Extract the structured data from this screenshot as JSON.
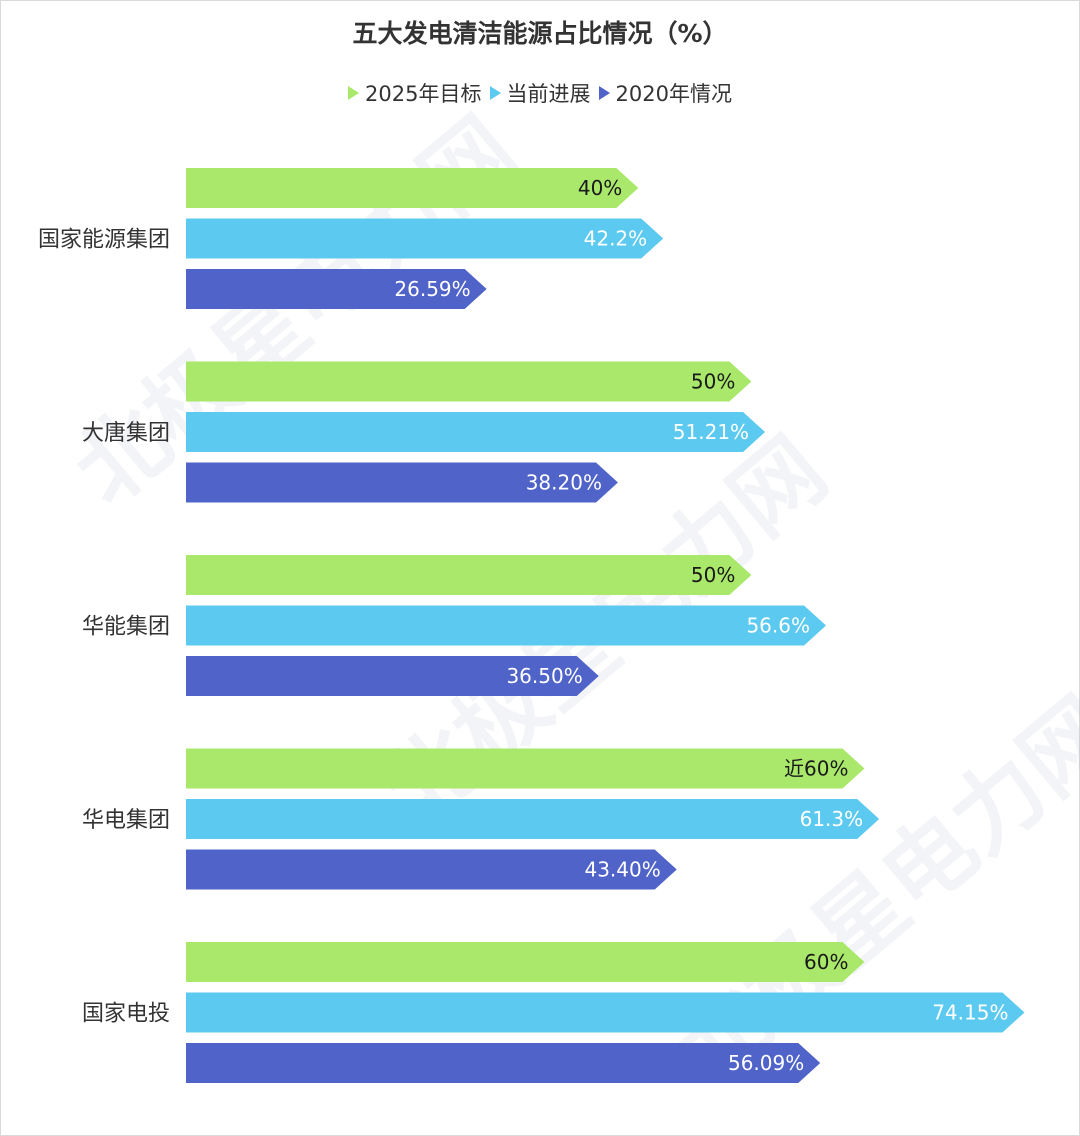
{
  "chart_data": {
    "type": "bar",
    "orientation": "horizontal",
    "title": "五大发电清洁能源占比情况（%）",
    "categories": [
      "国家能源集团",
      "大唐集团",
      "华能集团",
      "华电集团",
      "国家电投"
    ],
    "series": [
      {
        "name": "2025年目标",
        "color": "#a9e86a",
        "label_color": "#1a1a1a",
        "values": [
          40,
          50,
          50,
          60,
          60
        ],
        "labels": [
          "40%",
          "50%",
          "50%",
          "近60%",
          "60%"
        ]
      },
      {
        "name": "当前进展",
        "color": "#5ccaf0",
        "label_color": "#ffffff",
        "values": [
          42.2,
          51.21,
          56.6,
          61.3,
          74.15
        ],
        "labels": [
          "42.2%",
          "51.21%",
          "56.6%",
          "61.3%",
          "74.15%"
        ]
      },
      {
        "name": "2020年情况",
        "color": "#4f63c8",
        "label_color": "#ffffff",
        "values": [
          26.59,
          38.2,
          36.5,
          43.4,
          56.09
        ],
        "labels": [
          "26.59%",
          "38.20%",
          "36.50%",
          "43.40%",
          "56.09%"
        ]
      }
    ],
    "xlim": [
      0,
      78
    ],
    "grid": false,
    "legend_position": "top"
  },
  "watermark": "北极星电力网"
}
